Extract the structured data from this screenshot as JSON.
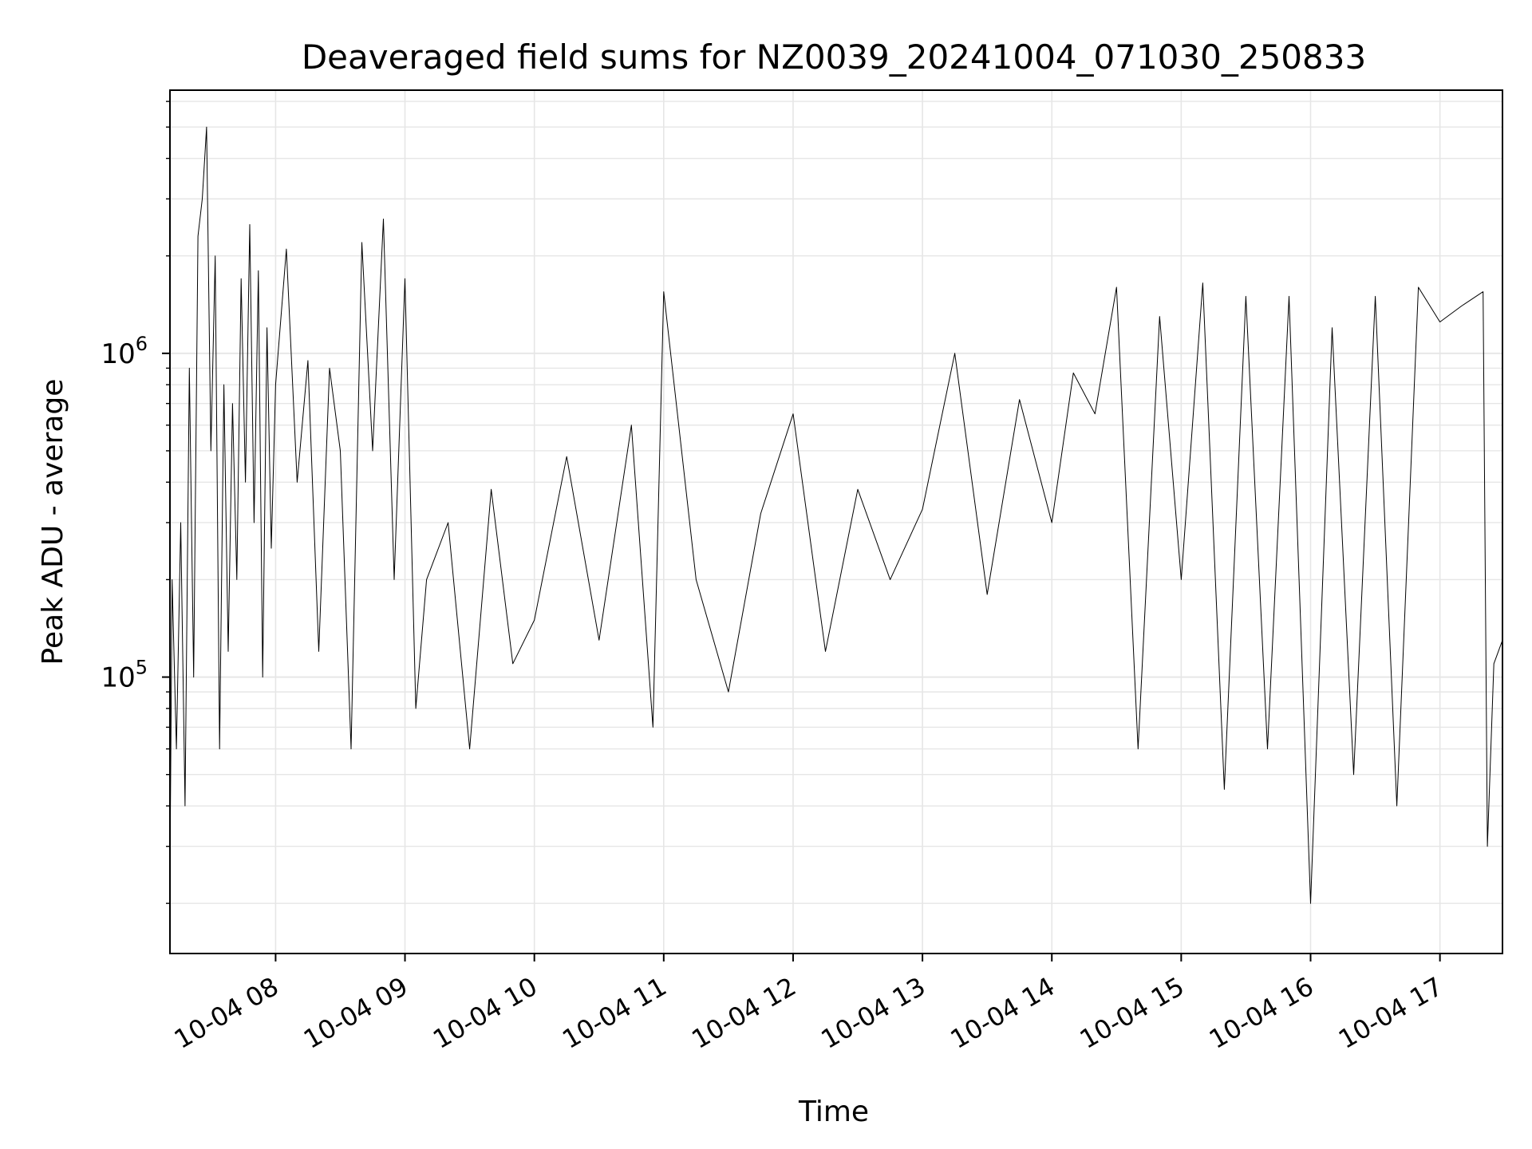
{
  "chart_data": {
    "type": "line",
    "title": "Deaveraged field sums for NZ0039_20241004_071030_250833",
    "xlabel": "Time",
    "ylabel": "Peak ADU - average",
    "yscale": "log",
    "ylim": [
      14000,
      6500000
    ],
    "xlim": [
      "2024-10-04 07:11",
      "2024-10-04 17:29"
    ],
    "x_ticks": [
      {
        "value": "2024-10-04 08:00",
        "label": "10-04 08"
      },
      {
        "value": "2024-10-04 09:00",
        "label": "10-04 09"
      },
      {
        "value": "2024-10-04 10:00",
        "label": "10-04 10"
      },
      {
        "value": "2024-10-04 11:00",
        "label": "10-04 11"
      },
      {
        "value": "2024-10-04 12:00",
        "label": "10-04 12"
      },
      {
        "value": "2024-10-04 13:00",
        "label": "10-04 13"
      },
      {
        "value": "2024-10-04 14:00",
        "label": "10-04 14"
      },
      {
        "value": "2024-10-04 15:00",
        "label": "10-04 15"
      },
      {
        "value": "2024-10-04 16:00",
        "label": "10-04 16"
      },
      {
        "value": "2024-10-04 17:00",
        "label": "10-04 17"
      }
    ],
    "y_ticks": [
      {
        "value": 100000,
        "base": "10",
        "exp": "5"
      },
      {
        "value": 1000000,
        "base": "10",
        "exp": "6"
      }
    ],
    "grid": true,
    "line_color": "#000000",
    "grid_color": "#e6e6e6",
    "series": [
      {
        "x": [
          "2024-10-04 07:11",
          "2024-10-04 07:12",
          "2024-10-04 07:14",
          "2024-10-04 07:16",
          "2024-10-04 07:18",
          "2024-10-04 07:20",
          "2024-10-04 07:22",
          "2024-10-04 07:24",
          "2024-10-04 07:26",
          "2024-10-04 07:28",
          "2024-10-04 07:30",
          "2024-10-04 07:32",
          "2024-10-04 07:34",
          "2024-10-04 07:36",
          "2024-10-04 07:38",
          "2024-10-04 07:40",
          "2024-10-04 07:42",
          "2024-10-04 07:44",
          "2024-10-04 07:46",
          "2024-10-04 07:48",
          "2024-10-04 07:50",
          "2024-10-04 07:52",
          "2024-10-04 07:54",
          "2024-10-04 07:56",
          "2024-10-04 07:58",
          "2024-10-04 08:00",
          "2024-10-04 08:05",
          "2024-10-04 08:10",
          "2024-10-04 08:15",
          "2024-10-04 08:20",
          "2024-10-04 08:25",
          "2024-10-04 08:30",
          "2024-10-04 08:35",
          "2024-10-04 08:40",
          "2024-10-04 08:45",
          "2024-10-04 08:50",
          "2024-10-04 08:55",
          "2024-10-04 09:00",
          "2024-10-04 09:05",
          "2024-10-04 09:10",
          "2024-10-04 09:20",
          "2024-10-04 09:30",
          "2024-10-04 09:40",
          "2024-10-04 09:50",
          "2024-10-04 10:00",
          "2024-10-04 10:15",
          "2024-10-04 10:30",
          "2024-10-04 10:45",
          "2024-10-04 10:55",
          "2024-10-04 11:00",
          "2024-10-04 11:15",
          "2024-10-04 11:30",
          "2024-10-04 11:45",
          "2024-10-04 12:00",
          "2024-10-04 12:15",
          "2024-10-04 12:30",
          "2024-10-04 12:45",
          "2024-10-04 13:00",
          "2024-10-04 13:15",
          "2024-10-04 13:30",
          "2024-10-04 13:45",
          "2024-10-04 14:00",
          "2024-10-04 14:10",
          "2024-10-04 14:20",
          "2024-10-04 14:30",
          "2024-10-04 14:40",
          "2024-10-04 14:50",
          "2024-10-04 15:00",
          "2024-10-04 15:10",
          "2024-10-04 15:20",
          "2024-10-04 15:30",
          "2024-10-04 15:40",
          "2024-10-04 15:50",
          "2024-10-04 16:00",
          "2024-10-04 16:10",
          "2024-10-04 16:20",
          "2024-10-04 16:30",
          "2024-10-04 16:40",
          "2024-10-04 16:50",
          "2024-10-04 17:00",
          "2024-10-04 17:10",
          "2024-10-04 17:20",
          "2024-10-04 17:22",
          "2024-10-04 17:25",
          "2024-10-04 17:29"
        ],
        "y": [
          25000,
          200000,
          60000,
          300000,
          40000,
          900000,
          100000,
          2300000,
          3000000,
          5000000,
          500000,
          2000000,
          60000,
          800000,
          120000,
          700000,
          200000,
          1700000,
          400000,
          2500000,
          300000,
          1800000,
          100000,
          1200000,
          250000,
          800000,
          2100000,
          400000,
          950000,
          120000,
          900000,
          500000,
          60000,
          2200000,
          500000,
          2600000,
          200000,
          1700000,
          80000,
          200000,
          300000,
          60000,
          380000,
          110000,
          150000,
          480000,
          130000,
          600000,
          70000,
          1550000,
          200000,
          90000,
          320000,
          650000,
          120000,
          380000,
          200000,
          330000,
          1000000,
          180000,
          720000,
          300000,
          870000,
          650000,
          1600000,
          60000,
          1300000,
          200000,
          1650000,
          45000,
          1500000,
          60000,
          1500000,
          20000,
          1200000,
          50000,
          1500000,
          40000,
          1600000,
          1250000,
          1400000,
          1550000,
          30000,
          110000,
          130000
        ]
      }
    ]
  }
}
